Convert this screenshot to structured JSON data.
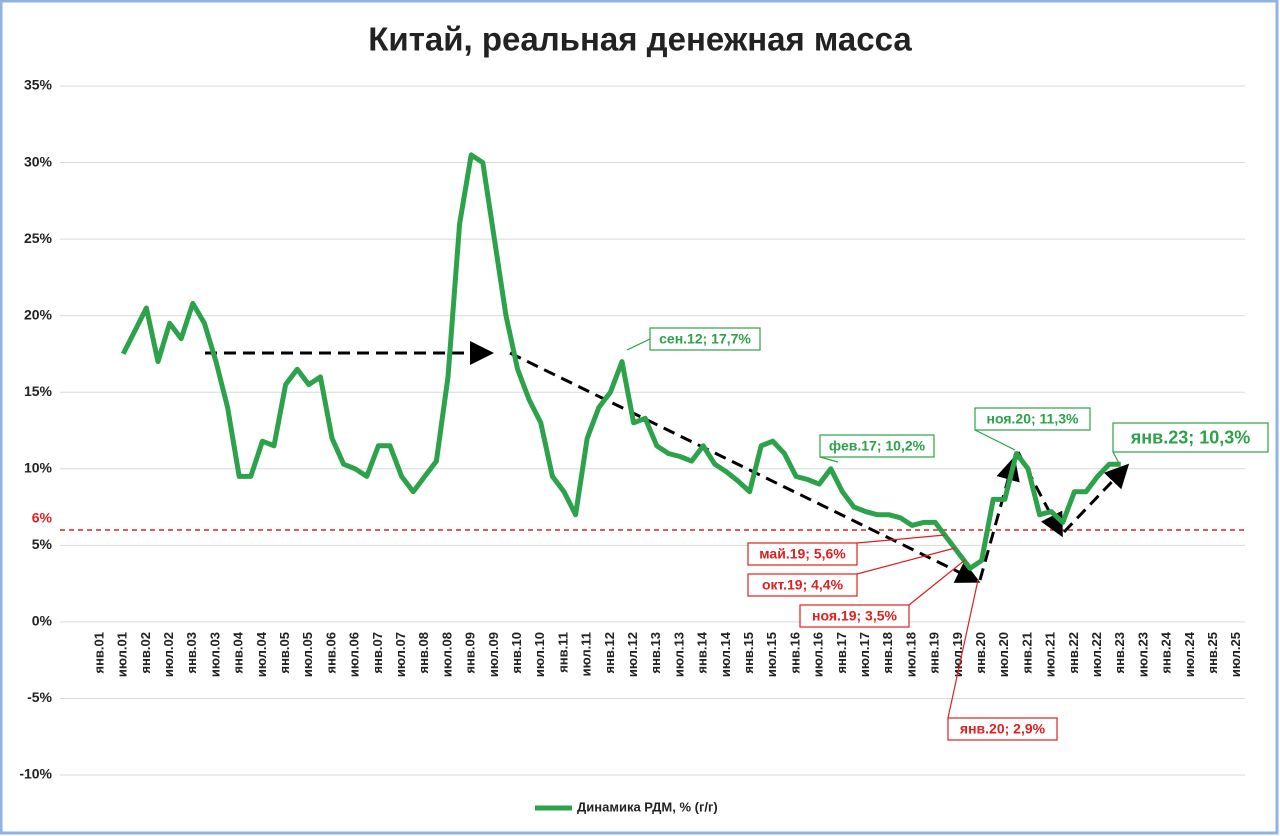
{
  "chart_data": {
    "type": "line",
    "title": "Китай, реальная денежная масса",
    "categories": [
      "янв.01",
      null,
      "июл.01",
      null,
      "янв.02",
      null,
      "июл.02",
      null,
      "янв.03",
      null,
      "июл.03",
      null,
      "янв.04",
      null,
      "июл.04",
      null,
      "янв.05",
      null,
      "июл.05",
      null,
      "янв.06",
      null,
      "июл.06",
      null,
      "янв.07",
      null,
      "июл.07",
      null,
      "янв.08",
      null,
      "июл.08",
      null,
      "янв.09",
      null,
      "июл.09",
      null,
      "янв.10",
      null,
      "июл.10",
      null,
      "янв.11",
      null,
      "июл.11",
      null,
      "янв.12",
      null,
      "июл.12",
      null,
      "янв.13",
      null,
      "июл.13",
      null,
      "янв.14",
      null,
      "июл.14",
      null,
      "янв.15",
      null,
      "июл.15",
      null,
      "янв.16",
      null,
      "июл.16",
      null,
      "янв.17",
      null,
      "июл.17",
      null,
      "янв.18",
      null,
      "июл.18",
      null,
      "янв.19",
      null,
      "июл.19",
      null,
      "янв.20",
      null,
      "июл.20",
      null,
      "янв.21",
      null,
      "июл.21",
      null,
      "янв.22",
      null,
      "июл.22",
      null,
      "янв.23",
      null,
      "июл.23",
      null,
      "янв.24",
      null,
      "июл.24",
      null,
      "янв.25",
      null,
      "июл.25"
    ],
    "series": [
      {
        "name": "Динамика РДМ, % (г/г)",
        "color": "#2ca24a",
        "values": [
          null,
          null,
          17.5,
          19,
          20.5,
          17,
          19.5,
          18.5,
          20.8,
          19.5,
          17,
          14,
          9.5,
          9.5,
          11.8,
          11.5,
          15.5,
          16.5,
          15.5,
          16,
          12,
          10.3,
          10,
          9.5,
          11.5,
          11.5,
          9.5,
          8.5,
          9.5,
          10.5,
          16,
          26,
          30.5,
          30,
          25,
          20,
          16.5,
          14.5,
          13,
          9.5,
          8.5,
          7,
          12,
          14,
          15,
          17,
          13,
          13.3,
          11.5,
          11,
          10.8,
          10.5,
          11.5,
          10.3,
          9.8,
          9.2,
          8.5,
          11.5,
          11.8,
          11,
          9.5,
          9.3,
          9,
          10,
          8.5,
          7.5,
          7.2,
          7,
          7,
          6.8,
          6.3,
          6.5,
          6.5,
          5.5,
          4.5,
          3.5,
          4,
          8,
          8,
          11,
          10,
          7,
          7.2,
          6.5,
          8.5,
          8.5,
          9.5,
          10.3,
          10.3,
          null,
          null,
          null,
          null,
          null,
          null,
          null,
          null,
          null,
          null
        ]
      }
    ],
    "ylim": [
      -10,
      35
    ],
    "yticks": [
      {
        "value": -10,
        "label": "-10%"
      },
      {
        "value": -5,
        "label": "-5%"
      },
      {
        "value": 0,
        "label": "0%"
      },
      {
        "value": 5,
        "label": "5%"
      },
      {
        "value": 10,
        "label": "10%"
      },
      {
        "value": 15,
        "label": "15%"
      },
      {
        "value": 20,
        "label": "20%"
      },
      {
        "value": 25,
        "label": "25%"
      },
      {
        "value": 30,
        "label": "30%"
      },
      {
        "value": 35,
        "label": "35%"
      }
    ],
    "grid": true,
    "reference_line": {
      "value": 6,
      "label": "6%",
      "color": "#e02020"
    },
    "annotations": [
      {
        "text": "сен.12; 17,7%",
        "color": "#2ca24a"
      },
      {
        "text": "фев.17; 10,2%",
        "color": "#2ca24a"
      },
      {
        "text": "ноя.20; 11,3%",
        "color": "#2ca24a"
      },
      {
        "text": "янв.23; 10,3%",
        "color": "#2ca24a"
      },
      {
        "text": "май.19; 5,6%",
        "color": "#e02020"
      },
      {
        "text": "окт.19; 4,4%",
        "color": "#e02020"
      },
      {
        "text": "ноя.19; 3,5%",
        "color": "#e02020"
      },
      {
        "text": "янв.20; 2,9%",
        "color": "#e02020"
      }
    ],
    "legend": "bottom"
  }
}
